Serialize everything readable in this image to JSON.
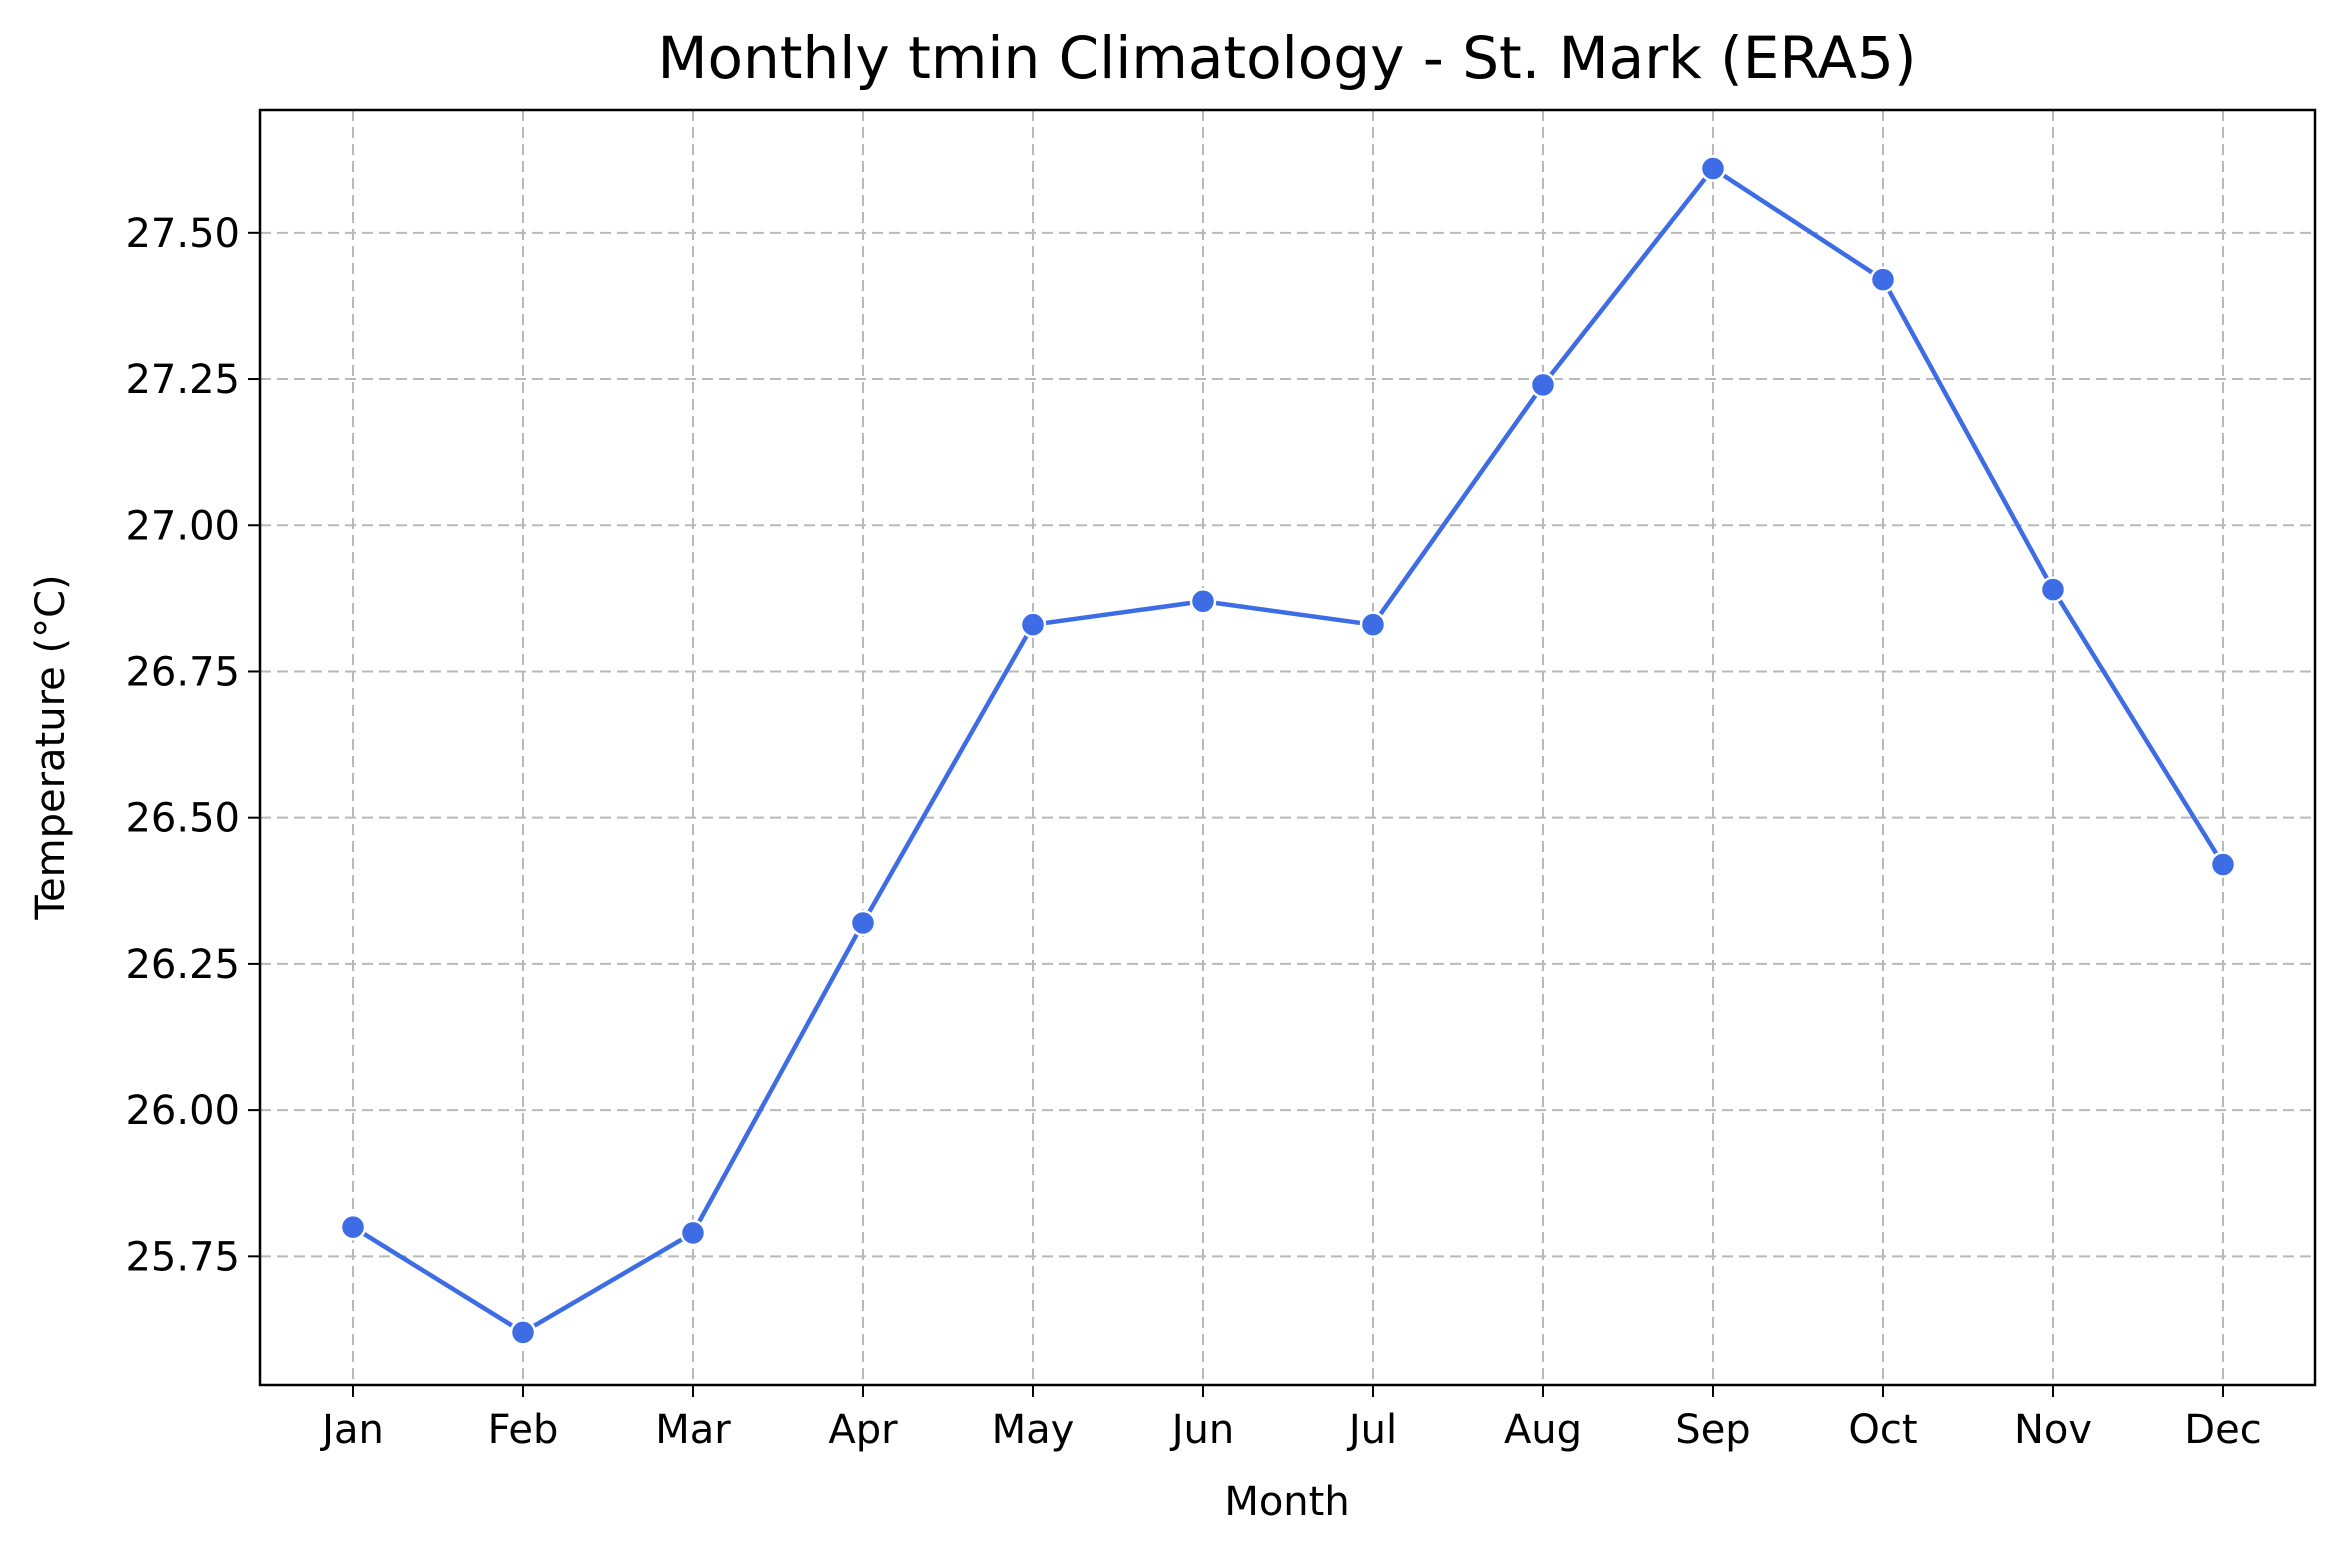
{
  "chart_data": {
    "type": "line",
    "title": "Monthly tmin Climatology - St. Mark (ERA5)",
    "xlabel": "Month",
    "ylabel": "Temperature (°C)",
    "categories": [
      "Jan",
      "Feb",
      "Mar",
      "Apr",
      "May",
      "Jun",
      "Jul",
      "Aug",
      "Sep",
      "Oct",
      "Nov",
      "Dec"
    ],
    "series": [
      {
        "values": [
          25.8,
          25.62,
          25.79,
          26.32,
          26.83,
          26.87,
          26.83,
          27.24,
          27.61,
          27.42,
          26.89,
          26.42
        ],
        "color": "#3d6ce4",
        "marker": "circle"
      }
    ],
    "yticks": [
      "25.75",
      "26.00",
      "26.25",
      "26.50",
      "26.75",
      "27.00",
      "27.25",
      "27.50"
    ],
    "ylim": [
      25.53,
      27.71
    ],
    "grid": true,
    "legend": "none"
  }
}
